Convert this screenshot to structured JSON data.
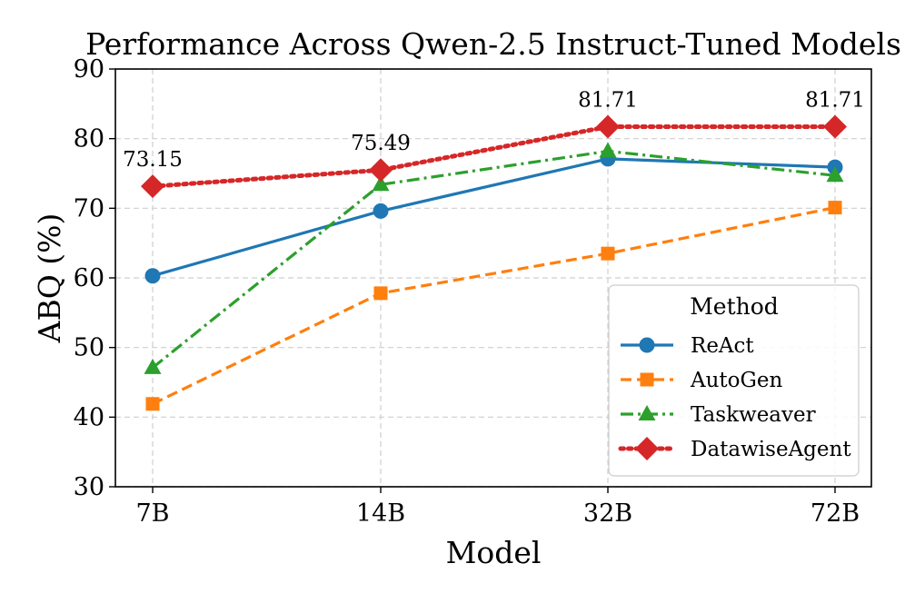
{
  "chart_data": {
    "type": "line",
    "title": "Performance Across Qwen-2.5 Instruct-Tuned Models",
    "xlabel": "Model",
    "ylabel": "ABQ (%)",
    "categories": [
      "7B",
      "14B",
      "32B",
      "72B"
    ],
    "ylim": [
      30,
      90
    ],
    "yticks": [
      30,
      40,
      50,
      60,
      70,
      80,
      90
    ],
    "grid": true,
    "legend": {
      "title": "Method",
      "placement": "lower-right"
    },
    "series": [
      {
        "name": "ReAct",
        "values": [
          60.3,
          69.6,
          77.1,
          75.9
        ],
        "color": "#1f77b4",
        "linestyle": "solid",
        "marker": "circle"
      },
      {
        "name": "AutoGen",
        "values": [
          41.9,
          57.8,
          63.5,
          70.1
        ],
        "color": "#ff7f0e",
        "linestyle": "dashed",
        "marker": "square"
      },
      {
        "name": "Taskweaver",
        "values": [
          47.1,
          73.4,
          78.2,
          74.7
        ],
        "color": "#2ca02c",
        "linestyle": "dashdot",
        "marker": "triangle"
      },
      {
        "name": "DatawiseAgent",
        "values": [
          73.15,
          75.49,
          81.71,
          81.71
        ],
        "color": "#d62728",
        "linestyle": "dotted",
        "marker": "diamond"
      }
    ],
    "annotations": [
      {
        "series": "DatawiseAgent",
        "index": 0,
        "text": "73.15"
      },
      {
        "series": "DatawiseAgent",
        "index": 1,
        "text": "75.49"
      },
      {
        "series": "DatawiseAgent",
        "index": 2,
        "text": "81.71"
      },
      {
        "series": "DatawiseAgent",
        "index": 3,
        "text": "81.71"
      }
    ]
  }
}
